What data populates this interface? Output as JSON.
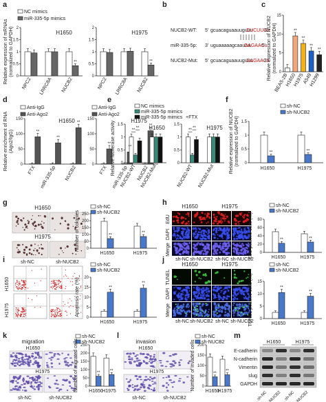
{
  "panel_labels": {
    "a": "a",
    "b": "b",
    "c": "c",
    "d": "d",
    "e": "e",
    "f": "f",
    "g": "g",
    "h": "h",
    "i": "i",
    "j": "j",
    "k": "k",
    "l": "l",
    "m": "m"
  },
  "legend": {
    "nc_mimics": "NC mimics",
    "mir_mimics": "miR-335-5p mimics",
    "ftx": "+FTX",
    "anti_igg": "Anti-IgG",
    "anti_ago2": "Anti-Ago2",
    "sh_nc": "sh-NC",
    "sh_nucb2": "sh-NUCB2"
  },
  "cell_lines": {
    "h1650": "H1650",
    "h1975": "H1975"
  },
  "sequences": {
    "wt_label": "NUCB2-WT:",
    "wt_5": "5'",
    "wt_seq": "gcuacaguaauuguuu",
    "wt_site": "CUCUUGa",
    "wt_3": "3'",
    "mir_label": "miR-335-5p:",
    "mir_3": "3'",
    "mir_seq": "uguaaaaagcaauaa",
    "mir_site": "GAGAACu",
    "mir_5": "5'",
    "mut_label": "NUCB2-Mut:",
    "mut_5": "5'",
    "mut_seq": "gcuacaguaauuguuu",
    "mut_site": "GAGAACa",
    "mut_3": "3'"
  },
  "images": {
    "edu": "EdU",
    "dapi": "DAPI",
    "merge": "Merge",
    "tunel": "TUNEL",
    "migration": "migration",
    "invasion": "invasion"
  },
  "western": {
    "proteins": [
      "E-cadherin",
      "N-cadherin",
      "Vimentin",
      "slug",
      "GAPDH"
    ]
  },
  "chart_data": [
    {
      "panel": "a",
      "type": "bar",
      "ylabel": "Relative expression of mRNAs (normalized to GAPDH)",
      "ylim": [
        0,
        2.0
      ],
      "groups": [
        {
          "title": "H1650",
          "categories": [
            "NPC2",
            "LRRC8A",
            "NUCB2"
          ],
          "series": [
            {
              "name": "NC mimics",
              "values": [
                1.0,
                1.0,
                1.0
              ]
            },
            {
              "name": "miR-335-5p mimics",
              "values": [
                0.95,
                1.0,
                0.42
              ]
            }
          ],
          "significance": [
            "",
            "",
            "**"
          ]
        },
        {
          "title": "H1975",
          "categories": [
            "NPC2",
            "LRRC8A",
            "NUCB2"
          ],
          "series": [
            {
              "name": "NC mimics",
              "values": [
                1.0,
                1.0,
                1.0
              ]
            },
            {
              "name": "miR-335-5p mimics",
              "values": [
                0.97,
                1.02,
                0.45
              ]
            }
          ],
          "significance": [
            "",
            "",
            "**"
          ]
        }
      ]
    },
    {
      "panel": "c",
      "type": "bar",
      "ylabel": "Relative expression of NUCB2 (normalized to GAPDH)",
      "ylim": [
        0,
        15
      ],
      "categories": [
        "BEAS-2B",
        "H1650",
        "H1975",
        "A549",
        "H1299"
      ],
      "values": [
        1.0,
        9.5,
        7.5,
        5.5,
        4.5
      ],
      "significance": [
        "",
        "**",
        "**",
        "**",
        "**"
      ]
    },
    {
      "panel": "d",
      "type": "bar",
      "ylabel": "Relative enrichment of RNA (Ago2/IgG)",
      "ylim": [
        0,
        150
      ],
      "groups": [
        {
          "title": "H1650",
          "categories": [
            "FTX",
            "miR-335-5p",
            "NUCB2"
          ],
          "series": [
            {
              "name": "Anti-IgG",
              "values": [
                1,
                1,
                1
              ]
            },
            {
              "name": "Anti-Ago2",
              "values": [
                90,
                70,
                120
              ]
            }
          ],
          "significance": [
            "**",
            "**",
            "**"
          ]
        },
        {
          "title": "H1975",
          "categories": [
            "FTX",
            "miR-335-5p",
            "NUCB2"
          ],
          "series": [
            {
              "name": "Anti-IgG",
              "values": [
                1,
                1,
                1
              ]
            },
            {
              "name": "Anti-Ago2",
              "values": [
                50,
                40,
                110
              ]
            }
          ],
          "significance": [
            "**",
            "**",
            "**"
          ]
        }
      ]
    },
    {
      "panel": "e",
      "type": "bar",
      "ylabel": "Relative luciferase activity",
      "ylim": [
        0,
        1.5
      ],
      "groups": [
        {
          "title": "H1650",
          "categories": [
            "NUCB2-WT",
            "NUCB2-Mut"
          ],
          "series": [
            {
              "name": "NC mimics",
              "values": [
                1.0,
                1.0
              ]
            },
            {
              "name": "miR-335-5p mimics",
              "values": [
                0.3,
                1.0
              ]
            },
            {
              "name": "miR-335-5p mimics+FTX",
              "values": [
                0.85,
                1.0
              ]
            }
          ],
          "significance": [
            "**",
            "",
            "**"
          ]
        },
        {
          "title": "H1975",
          "categories": [
            "NUCB2-WT",
            "NUCB2-Mut"
          ],
          "series": [
            {
              "name": "NC mimics",
              "values": [
                1.0,
                1.0
              ]
            },
            {
              "name": "miR-335-5p mimics",
              "values": [
                0.3,
                1.0
              ]
            },
            {
              "name": "miR-335-5p mimics+FTX",
              "values": [
                0.9,
                1.0
              ]
            }
          ],
          "significance": [
            "**",
            "",
            "**"
          ]
        }
      ]
    },
    {
      "panel": "f",
      "type": "bar",
      "ylabel": "Relative expression of NUCB2 (normalized to GAPDH)",
      "ylim": [
        0,
        1.5
      ],
      "categories": [
        "H1650",
        "H1975"
      ],
      "series": [
        {
          "name": "sh-NC",
          "values": [
            1.0,
            1.0
          ]
        },
        {
          "name": "sh-NUCB2",
          "values": [
            0.25,
            0.3
          ]
        }
      ],
      "significance": [
        "**",
        "**"
      ]
    },
    {
      "panel": "g",
      "type": "bar",
      "ylabel": "Number of colonies",
      "ylim": [
        0,
        250
      ],
      "categories": [
        "H1650",
        "H1975"
      ],
      "series": [
        {
          "name": "sh-NC",
          "values": [
            195,
            160
          ]
        },
        {
          "name": "sh-NUCB2",
          "values": [
            70,
            85
          ]
        }
      ],
      "significance": [
        "**",
        "**"
      ]
    },
    {
      "panel": "h",
      "type": "bar",
      "ylabel": "EdU positive cells (%)",
      "ylim": [
        0,
        80
      ],
      "categories": [
        "H1650",
        "H1975"
      ],
      "series": [
        {
          "name": "sh-NC",
          "values": [
            50,
            45
          ]
        },
        {
          "name": "sh-NUCB2",
          "values": [
            22,
            25
          ]
        }
      ],
      "significance": [
        "**",
        "**"
      ]
    },
    {
      "panel": "i",
      "type": "bar",
      "ylabel": "Apoptosis rate (%)",
      "ylim": [
        0,
        20
      ],
      "categories": [
        "H1650",
        "H1975"
      ],
      "series": [
        {
          "name": "sh-NC",
          "values": [
            3.0,
            3.0
          ]
        },
        {
          "name": "sh-NUCB2",
          "values": [
            12.5,
            14.5
          ]
        }
      ],
      "significance": [
        "**",
        "**"
      ]
    },
    {
      "panel": "j",
      "type": "bar",
      "ylabel": "TUNEL positive cells (%)",
      "ylim": [
        0,
        15
      ],
      "categories": [
        "H1650",
        "H1975"
      ],
      "series": [
        {
          "name": "sh-NC",
          "values": [
            2.5,
            2.5
          ]
        },
        {
          "name": "sh-NUCB2",
          "values": [
            10.5,
            9.0
          ]
        }
      ],
      "significance": [
        "**",
        "**"
      ]
    },
    {
      "panel": "k",
      "type": "bar",
      "ylabel": "Number of migrated cells",
      "ylim": [
        0,
        250
      ],
      "categories": [
        "H1650",
        "H1975"
      ],
      "series": [
        {
          "name": "sh-NC",
          "values": [
            180,
            170
          ]
        },
        {
          "name": "sh-NUCB2",
          "values": [
            60,
            70
          ]
        }
      ],
      "significance": [
        "**",
        "**"
      ]
    },
    {
      "panel": "l",
      "type": "bar",
      "ylabel": "Number of invaded cells",
      "ylim": [
        0,
        200
      ],
      "categories": [
        "H1650",
        "H1975"
      ],
      "series": [
        {
          "name": "sh-NC",
          "values": [
            140,
            130
          ]
        },
        {
          "name": "sh-NUCB2",
          "values": [
            45,
            55
          ]
        }
      ],
      "significance": [
        "**",
        "**"
      ]
    }
  ]
}
